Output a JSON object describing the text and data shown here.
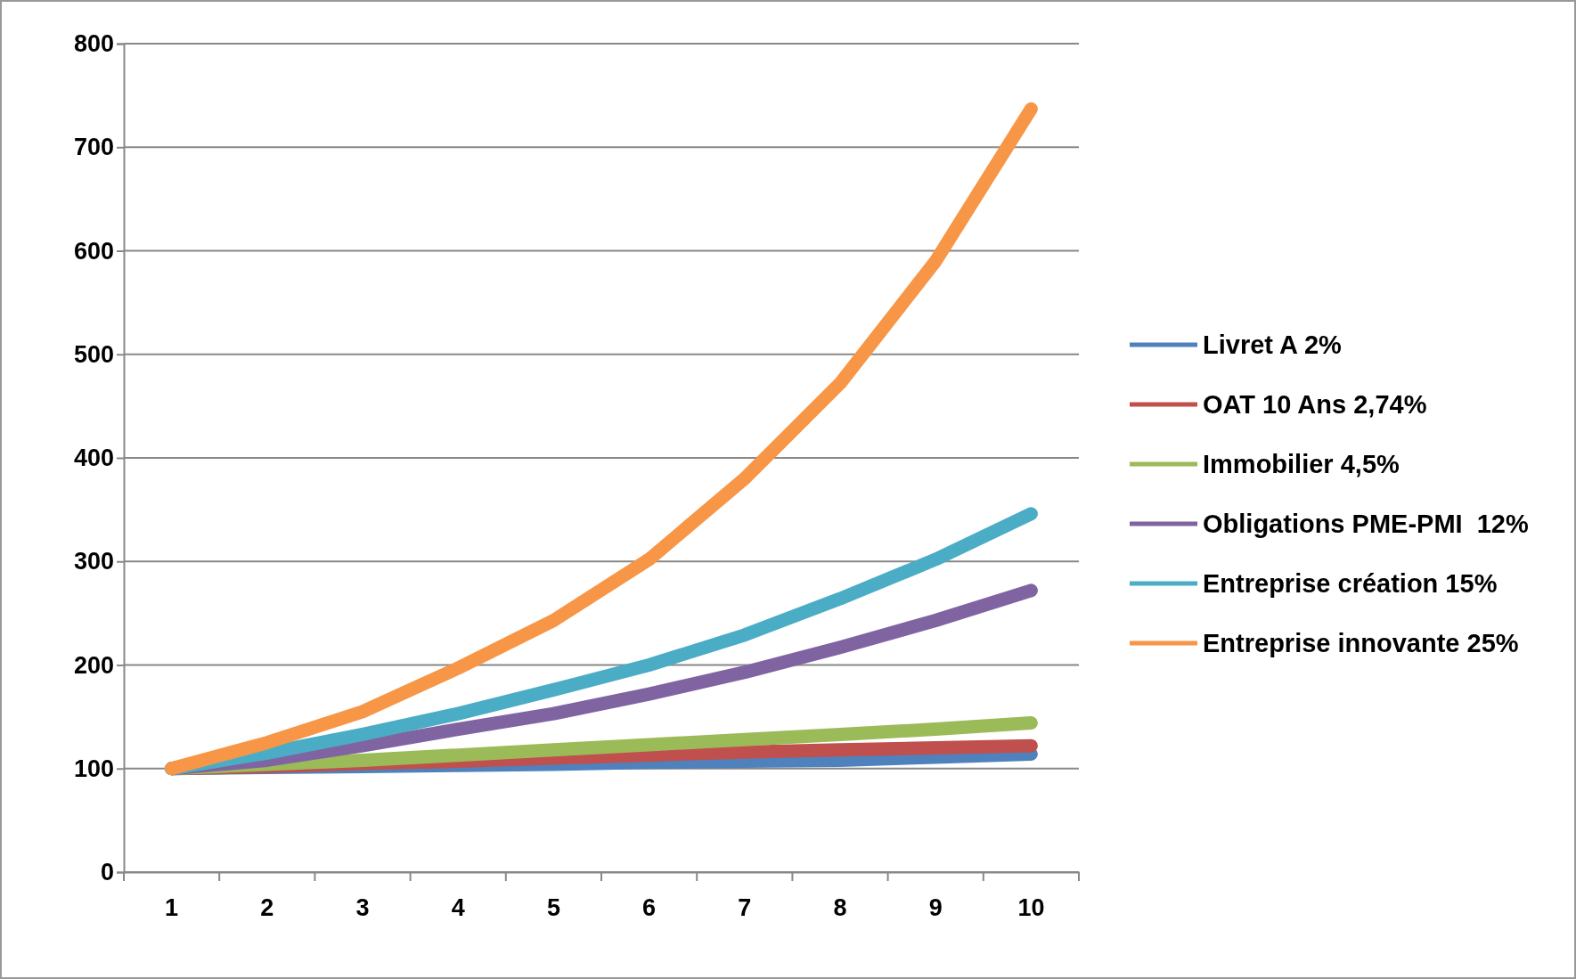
{
  "chart_data": {
    "type": "line",
    "categories": [
      "1",
      "2",
      "3",
      "4",
      "5",
      "6",
      "7",
      "8",
      "9",
      "10"
    ],
    "ylim": [
      0,
      800
    ],
    "yticks": [
      0,
      100,
      200,
      300,
      400,
      500,
      600,
      700,
      800
    ],
    "grid": "y",
    "legend": "right",
    "marker": "none",
    "series": [
      {
        "name": "Livret A 2%",
        "color": "#4f81bd",
        "values": [
          100,
          101,
          102,
          103,
          104,
          106,
          107,
          108,
          111,
          114
        ]
      },
      {
        "name": "OAT 10 Ans 2,74%",
        "color": "#c0504d",
        "values": [
          100,
          102,
          105,
          107,
          110,
          113,
          116,
          118,
          120,
          122
        ]
      },
      {
        "name": "Immobilier 4,5%",
        "color": "#9bbb59",
        "values": [
          100,
          104,
          108,
          113,
          118,
          123,
          128,
          133,
          138,
          144
        ]
      },
      {
        "name": "Obligations PME-PMI  12%",
        "color": "#8064a2",
        "values": [
          100,
          108,
          122,
          138,
          153,
          172,
          193,
          217,
          243,
          272
        ]
      },
      {
        "name": "Entreprise création 15%",
        "color": "#4bacc6",
        "values": [
          100,
          115,
          133,
          153,
          176,
          200,
          229,
          264,
          302,
          346
        ]
      },
      {
        "name": "Entreprise innovante 25%",
        "color": "#f79646",
        "values": [
          100,
          125,
          155,
          197,
          243,
          302,
          380,
          472,
          590,
          737
        ]
      }
    ]
  }
}
